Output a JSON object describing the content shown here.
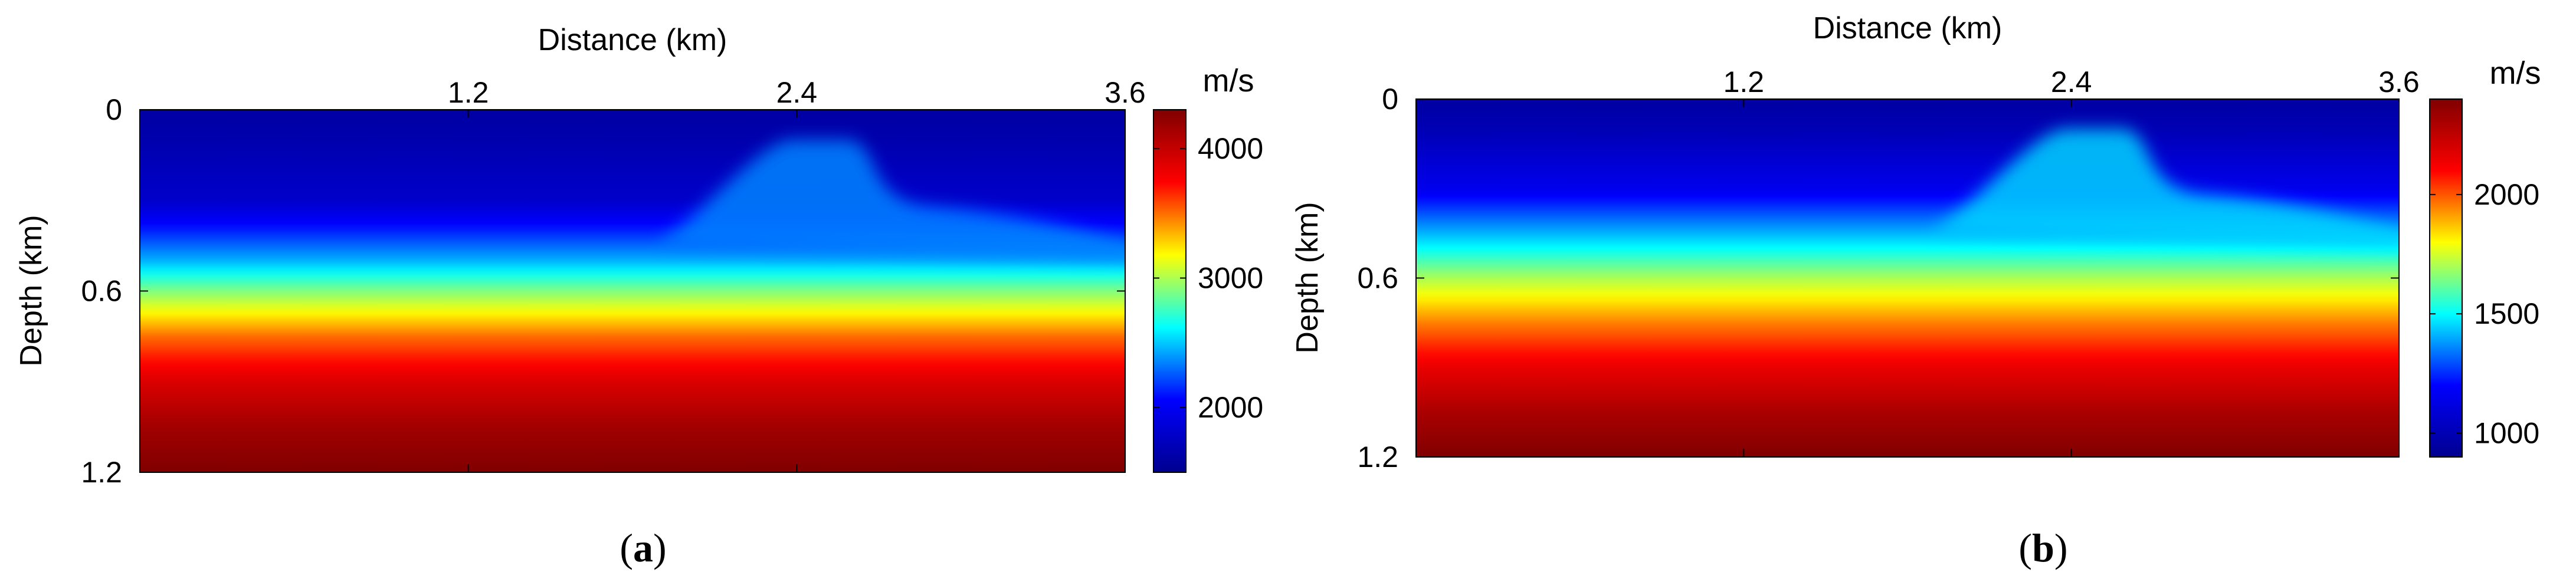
{
  "figure": {
    "panels": [
      {
        "label_prefix": "(",
        "label_letter": "a",
        "label_suffix": ")"
      },
      {
        "label_prefix": "(",
        "label_letter": "b",
        "label_suffix": ")"
      }
    ]
  },
  "chart_data": [
    {
      "type": "heatmap",
      "title": "",
      "xlabel": "Distance (km)",
      "ylabel": "Depth (km)",
      "x_ticks": [
        "1.2",
        "2.4",
        "3.6"
      ],
      "x_tick_values": [
        1.2,
        2.4,
        3.6
      ],
      "y_ticks": [
        "0",
        "0.6",
        "1.2"
      ],
      "y_tick_values": [
        0,
        0.6,
        1.2
      ],
      "xlim": [
        0,
        3.6
      ],
      "ylim": [
        0,
        1.2
      ],
      "colorbar": {
        "unit": "m/s",
        "ticks": [
          "2000",
          "3000",
          "4000"
        ],
        "tick_values": [
          2000,
          3000,
          4000
        ],
        "range": [
          1500,
          4300
        ],
        "colormap": [
          "#00008f",
          "#0000ff",
          "#00ffff",
          "#ffff00",
          "#ff0000",
          "#800000"
        ]
      },
      "field": {
        "depth_km": [
          0,
          0.1,
          0.3,
          0.5,
          0.6,
          0.75,
          0.9,
          1.05,
          1.2
        ],
        "velocity_mps": [
          1600,
          1650,
          1800,
          2450,
          2900,
          3500,
          3900,
          4150,
          4300
        ],
        "anomaly": {
          "center_x_km": 2.45,
          "top_depth_km": 0.1,
          "velocity_mps": 2350
        }
      }
    },
    {
      "type": "heatmap",
      "title": "",
      "xlabel": "Distance (km)",
      "ylabel": "Depth (km)",
      "x_ticks": [
        "1.2",
        "2.4",
        "3.6"
      ],
      "x_tick_values": [
        1.2,
        2.4,
        3.6
      ],
      "y_ticks": [
        "0",
        "0.6",
        "1.2"
      ],
      "y_tick_values": [
        0,
        0.6,
        1.2
      ],
      "xlim": [
        0,
        3.6
      ],
      "ylim": [
        0,
        1.2
      ],
      "colorbar": {
        "unit": "m/s",
        "ticks": [
          "1000",
          "1500",
          "2000"
        ],
        "tick_values": [
          1000,
          1500,
          2000
        ],
        "range": [
          900,
          2400
        ],
        "colormap": [
          "#00008f",
          "#0000ff",
          "#00ffff",
          "#ffff00",
          "#ff0000",
          "#800000"
        ]
      },
      "field": {
        "depth_km": [
          0,
          0.1,
          0.3,
          0.5,
          0.6,
          0.75,
          0.9,
          1.05,
          1.2
        ],
        "velocity_mps": [
          950,
          1000,
          1150,
          1500,
          1700,
          1950,
          2150,
          2300,
          2400
        ],
        "anomaly": {
          "center_x_km": 2.45,
          "top_depth_km": 0.1,
          "velocity_mps": 1450
        }
      }
    }
  ]
}
